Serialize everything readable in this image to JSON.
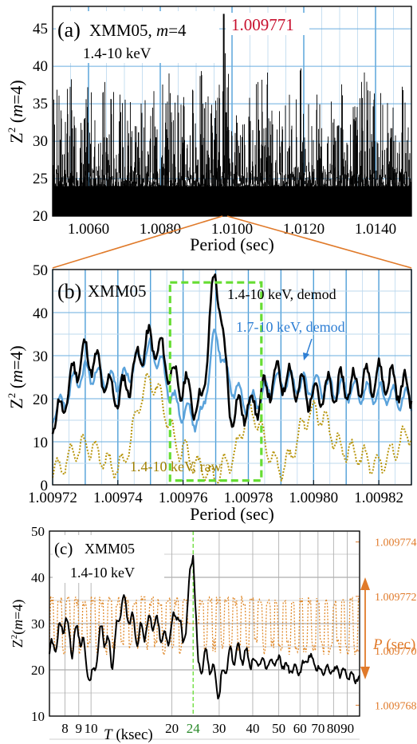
{
  "chart_data": [
    {
      "id": "a",
      "type": "line",
      "panel_label": "(a)",
      "title_line1": "XMM05, ",
      "title_m": "m",
      "title_m_val": "=4",
      "band_label": "1.4-10 keV",
      "peak_annotation": "1.009771",
      "xlabel": "Period (sec)",
      "ylabel": "Z² (m=4)",
      "xlim": [
        1.005,
        1.015
      ],
      "ylim": [
        20,
        48
      ],
      "x_ticks": [
        1.006,
        1.008,
        1.01,
        1.012,
        1.014
      ],
      "x_tick_labels": [
        "1.0060",
        "1.0080",
        "1.0100",
        "1.0120",
        "1.0140"
      ],
      "y_ticks": [
        20,
        25,
        30,
        35,
        40,
        45
      ],
      "y_tick_labels": [
        "20",
        "25",
        "30",
        "35",
        "40",
        "45"
      ],
      "series": [
        {
          "color": "#000000",
          "note": "dense periodogram; representative envelope of the noise spikes",
          "x": [
            1.005,
            1.0052,
            1.0055,
            1.0058,
            1.006,
            1.0062,
            1.0065,
            1.0068,
            1.007,
            1.0072,
            1.0075,
            1.0078,
            1.008,
            1.0082,
            1.0085,
            1.0088,
            1.009,
            1.0092,
            1.0095,
            1.0098,
            1.00977,
            1.01,
            1.0102,
            1.0105,
            1.0108,
            1.011,
            1.0112,
            1.0115,
            1.0118,
            1.012,
            1.0122,
            1.0125,
            1.0128,
            1.013,
            1.0132,
            1.0135,
            1.0138,
            1.014,
            1.0142,
            1.0145,
            1.0148,
            1.015
          ],
          "y": [
            41,
            36,
            39,
            34,
            38,
            35,
            40,
            36,
            37,
            41,
            35,
            37,
            39,
            40,
            38,
            36,
            42,
            39,
            37,
            41,
            47,
            36,
            37,
            38,
            42,
            40,
            34,
            37,
            39,
            41,
            35,
            38,
            36,
            40,
            35,
            37,
            41,
            39,
            36,
            37,
            42,
            35
          ]
        }
      ]
    },
    {
      "id": "b",
      "type": "line",
      "panel_label": "(b)",
      "title": "XMM05",
      "xlabel": "Period (sec)",
      "ylabel": "Z² (m=4)",
      "xlim": [
        1.00972,
        1.00983
      ],
      "ylim": [
        0,
        50
      ],
      "x_ticks": [
        1.00972,
        1.00974,
        1.00976,
        1.00978,
        1.0098,
        1.00982
      ],
      "x_tick_labels": [
        "1.00972",
        "1.00974",
        "1.00976",
        "1.00978",
        "1.00980",
        "1.00982"
      ],
      "y_ticks": [
        0,
        10,
        20,
        30,
        40,
        50
      ],
      "y_tick_labels": [
        "0",
        "10",
        "20",
        "30",
        "40",
        "50"
      ],
      "highlight_box": {
        "x": [
          1.009756,
          1.009784
        ],
        "y": [
          1,
          47
        ]
      },
      "series": [
        {
          "name": "1.4-10 keV, demod",
          "color": "#000000",
          "x": [
            1.00972,
            1.00973,
            1.00974,
            1.00975,
            1.00976,
            1.009765,
            1.00977,
            1.009775,
            1.00978,
            1.00979,
            1.0098,
            1.00981,
            1.00982,
            1.00983
          ],
          "y": [
            15,
            30,
            21,
            33,
            23,
            18,
            47,
            17,
            18,
            25,
            21,
            23,
            25,
            22
          ]
        },
        {
          "name": "1.7-10 keV, demod",
          "color": "#5ba3db",
          "x": [
            1.00972,
            1.00973,
            1.00974,
            1.00975,
            1.00976,
            1.009765,
            1.00977,
            1.009775,
            1.00978,
            1.00979,
            1.0098,
            1.00981,
            1.00982,
            1.00983
          ],
          "y": [
            17,
            26,
            24,
            31,
            17,
            15,
            34,
            23,
            19,
            24,
            23,
            22,
            21,
            20
          ]
        },
        {
          "name": "1.4-10 keV, raw",
          "color": "#b8960e",
          "x": [
            1.00972,
            1.00973,
            1.00974,
            1.00975,
            1.00976,
            1.009765,
            1.00977,
            1.009775,
            1.00978,
            1.00979,
            1.0098,
            1.00981,
            1.00982,
            1.00983
          ],
          "y": [
            3,
            9,
            4,
            24,
            8,
            4,
            2,
            6,
            17,
            4,
            17,
            8,
            5,
            12
          ]
        }
      ]
    },
    {
      "id": "c",
      "type": "line",
      "panel_label": "(c)",
      "title": "XMM05",
      "band_label": "1.4-10 keV",
      "xlabel_T": "T",
      "xlabel_rest": " (ksec)",
      "ylabel": "Z²(m=4)",
      "ylabel_right_P": "P",
      "ylabel_right_rest": " (sec)",
      "xscale": "log",
      "xlim": [
        7,
        100
      ],
      "ylim": [
        10,
        50
      ],
      "y_ticks": [
        10,
        20,
        30,
        40,
        50
      ],
      "y_tick_labels": [
        "10",
        "20",
        "30",
        "40",
        "50"
      ],
      "x_ticks": [
        8,
        9,
        10,
        20,
        24,
        30,
        40,
        50,
        60,
        70,
        80,
        90
      ],
      "x_tick_labels": [
        "8",
        "9",
        "10",
        "20",
        "24",
        "30",
        "40",
        "50",
        "60",
        "70",
        "80",
        "90"
      ],
      "marker_x": 24,
      "right_axis": {
        "ylim": [
          1.0097676,
          1.0097744
        ],
        "ticks": [
          1.009774,
          1.009772,
          1.00977,
          1.009768
        ],
        "tick_labels": [
          "1.009774",
          "1.009772",
          "1.009770",
          "1.009768"
        ]
      },
      "series": [
        {
          "name": "Z2",
          "color": "#000000",
          "x": [
            7,
            8,
            8.5,
            9,
            10,
            11,
            12,
            13,
            15,
            17,
            19,
            21,
            22,
            23,
            24,
            25,
            27,
            30,
            32,
            35,
            40,
            45,
            50,
            55,
            60,
            65,
            70,
            80,
            90,
            100
          ],
          "y": [
            23,
            31,
            25,
            29,
            17,
            29,
            22,
            35,
            27,
            31,
            26,
            33,
            25,
            35,
            47,
            20,
            23,
            15,
            22,
            24,
            22,
            21,
            22,
            20,
            20,
            23,
            20,
            20,
            19,
            18
          ]
        },
        {
          "name": "P",
          "color": "#e08a2c",
          "x": [
            7,
            8,
            9,
            10,
            11,
            12,
            13,
            15,
            17,
            19,
            21,
            23,
            24,
            26,
            28,
            30,
            33,
            36,
            40,
            45,
            50,
            55,
            60,
            65,
            70,
            80,
            90,
            100
          ],
          "y": [
            1.00977,
            1.009772,
            1.00977,
            1.009772,
            1.00977,
            1.009772,
            1.00977,
            1.009772,
            1.00977,
            1.009772,
            1.00977,
            1.009772,
            1.009771,
            1.009772,
            1.00977,
            1.009772,
            1.00977,
            1.009772,
            1.00977,
            1.009772,
            1.00977,
            1.009772,
            1.00977,
            1.009772,
            1.00977,
            1.009772,
            1.00977,
            1.009772
          ]
        }
      ]
    }
  ]
}
